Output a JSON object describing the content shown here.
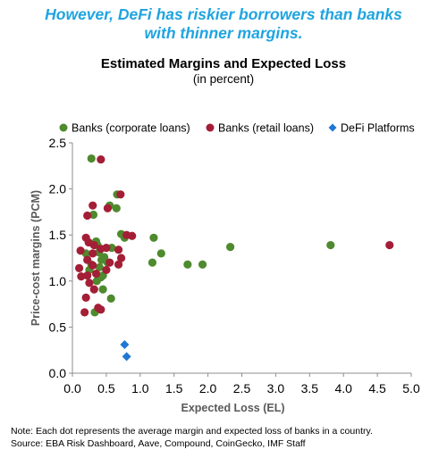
{
  "headline": {
    "line1": "However, DeFi has riskier borrowers than banks",
    "line2": "with thinner margins."
  },
  "footnote": {
    "note": "Note: Each dot represents the average margin and expected loss of banks in a country.",
    "source": "Source: EBA Risk Dashboard, Aave, Compound, CoinGecko, IMF Staff"
  },
  "chart_data": {
    "type": "scatter",
    "title": "Estimated Margins and Expected Loss",
    "subtitle": "(in percent)",
    "xlabel": "Expected Loss (EL)",
    "ylabel": "Price-cost margins (PCM)",
    "xlim": [
      0,
      5
    ],
    "ylim": [
      0,
      2.5
    ],
    "xticks": [
      "0.0",
      "0.5",
      "1.0",
      "1.5",
      "2.0",
      "2.5",
      "3.0",
      "3.5",
      "4.0",
      "4.5",
      "5.0"
    ],
    "yticks": [
      "0.0",
      "0.5",
      "1.0",
      "1.5",
      "2.0",
      "2.5"
    ],
    "grid": false,
    "legend_position": "top",
    "series": [
      {
        "name": "Banks (corporate loans)",
        "color": "#4e8a2e",
        "marker": "circle",
        "points": [
          [
            0.28,
            2.33
          ],
          [
            0.66,
            1.94
          ],
          [
            0.55,
            1.82
          ],
          [
            0.31,
            1.72
          ],
          [
            0.72,
            1.51
          ],
          [
            0.35,
            1.43
          ],
          [
            0.37,
            1.39
          ],
          [
            0.58,
            1.36
          ],
          [
            0.39,
            1.31
          ],
          [
            0.2,
            1.3
          ],
          [
            0.47,
            1.26
          ],
          [
            0.43,
            1.23
          ],
          [
            0.52,
            1.2
          ],
          [
            0.28,
            1.18
          ],
          [
            0.4,
            1.15
          ],
          [
            0.25,
            1.12
          ],
          [
            0.45,
            1.06
          ],
          [
            0.42,
            1.04
          ],
          [
            0.36,
            1.0
          ],
          [
            0.45,
            0.91
          ],
          [
            0.57,
            0.81
          ],
          [
            0.33,
            0.66
          ],
          [
            0.77,
            1.47
          ],
          [
            1.2,
            1.47
          ],
          [
            1.31,
            1.3
          ],
          [
            1.18,
            1.2
          ],
          [
            1.7,
            1.18
          ],
          [
            1.92,
            1.18
          ],
          [
            2.33,
            1.37
          ],
          [
            3.81,
            1.39
          ],
          [
            0.65,
            1.79
          ]
        ]
      },
      {
        "name": "Banks (retail loans)",
        "color": "#a31e36",
        "marker": "circle",
        "points": [
          [
            0.42,
            2.32
          ],
          [
            0.71,
            1.94
          ],
          [
            0.3,
            1.82
          ],
          [
            0.52,
            1.79
          ],
          [
            0.22,
            1.71
          ],
          [
            0.8,
            1.5
          ],
          [
            0.88,
            1.49
          ],
          [
            0.2,
            1.47
          ],
          [
            0.24,
            1.42
          ],
          [
            0.32,
            1.39
          ],
          [
            0.42,
            1.35
          ],
          [
            0.5,
            1.36
          ],
          [
            0.68,
            1.34
          ],
          [
            0.12,
            1.33
          ],
          [
            0.3,
            1.3
          ],
          [
            0.72,
            1.25
          ],
          [
            0.22,
            1.23
          ],
          [
            0.55,
            1.2
          ],
          [
            0.3,
            1.17
          ],
          [
            0.68,
            1.18
          ],
          [
            0.1,
            1.14
          ],
          [
            0.5,
            1.12
          ],
          [
            0.13,
            1.05
          ],
          [
            0.22,
            1.06
          ],
          [
            0.35,
            1.08
          ],
          [
            0.25,
            0.98
          ],
          [
            0.32,
            0.91
          ],
          [
            0.2,
            0.82
          ],
          [
            0.38,
            0.71
          ],
          [
            0.42,
            0.69
          ],
          [
            0.18,
            0.66
          ],
          [
            4.68,
            1.39
          ]
        ]
      },
      {
        "name": "DeFi Platforms",
        "color": "#1f78d1",
        "marker": "diamond",
        "points": [
          [
            0.77,
            0.31
          ],
          [
            0.8,
            0.18
          ]
        ]
      }
    ]
  }
}
